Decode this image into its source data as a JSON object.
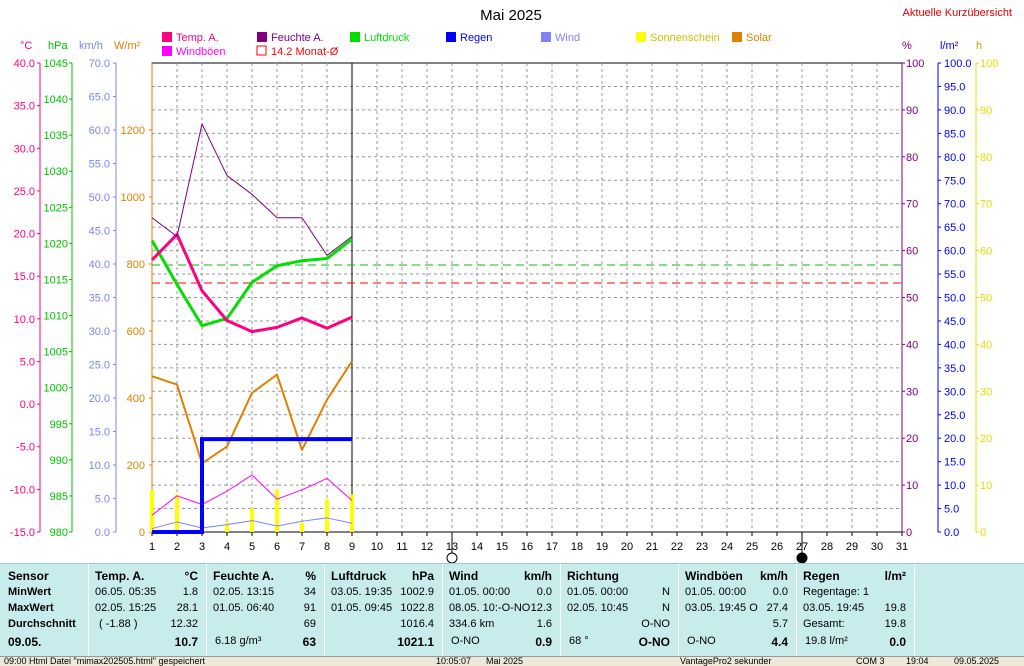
{
  "chart_data": {
    "type": "line",
    "title": "Mai 2025",
    "link": "Aktuelle Kurzübersicht",
    "x": [
      1,
      2,
      3,
      4,
      5,
      6,
      7,
      8,
      9
    ],
    "x_ticks": [
      "1",
      "2",
      "3",
      "4",
      "5",
      "6",
      "7",
      "8",
      "9",
      "10",
      "11",
      "12",
      "13",
      "14",
      "15",
      "16",
      "17",
      "18",
      "19",
      "20",
      "21",
      "22",
      "23",
      "24",
      "25",
      "26",
      "27",
      "28",
      "29",
      "30",
      "31"
    ],
    "xlim": [
      1,
      31
    ],
    "axes": {
      "temp": {
        "unit": "°C",
        "ylim": [
          -15,
          40
        ],
        "color": "#ff0080",
        "ticks": [
          "40.0",
          "35.0",
          "30.0",
          "25.0",
          "20.0",
          "15.0",
          "10.0",
          "5.0",
          "0.0",
          "-5.0",
          "-10.0",
          "-15.0"
        ]
      },
      "pressure": {
        "unit": "hPa",
        "ylim": [
          980,
          1045
        ],
        "color": "#00c000",
        "ticks": [
          "1045",
          "1040",
          "1035",
          "1030",
          "1025",
          "1020",
          "1015",
          "1010",
          "1005",
          "1000",
          "995",
          "990",
          "985",
          "980"
        ]
      },
      "wind": {
        "unit": "km/h",
        "ylim": [
          0,
          70
        ],
        "color": "#8080ff",
        "ticks": [
          "70.0",
          "65.0",
          "60.0",
          "55.0",
          "50.0",
          "45.0",
          "40.0",
          "35.0",
          "30.0",
          "25.0",
          "20.0",
          "15.0",
          "10.0",
          "5.0",
          "0.0"
        ]
      },
      "solar": {
        "unit": "W/m²",
        "ylim": [
          0,
          1400
        ],
        "color": "#e08000",
        "ticks": [
          "1200",
          "1000",
          "800",
          "600",
          "400",
          "200",
          "0"
        ]
      },
      "humidity": {
        "unit": "%",
        "ylim": [
          0,
          100
        ],
        "color": "#800080",
        "ticks": [
          "100",
          "90",
          "80",
          "70",
          "60",
          "50",
          "40",
          "30",
          "20",
          "10",
          "0"
        ]
      },
      "rain": {
        "unit": "l/m²",
        "ylim": [
          0,
          100
        ],
        "color": "#0000ff",
        "ticks": [
          "100.0",
          "95.0",
          "90.0",
          "85.0",
          "80.0",
          "75.0",
          "70.0",
          "65.0",
          "60.0",
          "55.0",
          "50.0",
          "45.0",
          "40.0",
          "35.0",
          "30.0",
          "25.0",
          "20.0",
          "15.0",
          "10.0",
          "5.0",
          "0.0"
        ]
      },
      "sun": {
        "unit": "h",
        "ylim": [
          0,
          100
        ],
        "color": "#e0e000",
        "ticks": [
          "100",
          "90",
          "80",
          "70",
          "60",
          "50",
          "40",
          "30",
          "20",
          "10",
          "0"
        ]
      }
    },
    "legend": [
      {
        "label": "Temp. A.",
        "color": "#ff0080",
        "type": "box"
      },
      {
        "label": "Feuchte A.",
        "color": "#800080",
        "type": "box"
      },
      {
        "label": "Luftdruck",
        "color": "#00e000",
        "type": "box"
      },
      {
        "label": "Regen",
        "color": "#0000ff",
        "type": "box"
      },
      {
        "label": "Wind",
        "color": "#8080ff",
        "type": "box"
      },
      {
        "label": "Sonnenschein",
        "color": "#ffff00",
        "type": "box"
      },
      {
        "label": "Solar",
        "color": "#e08000",
        "type": "box"
      },
      {
        "label": "Windböen",
        "color": "#ff00ff",
        "type": "box"
      },
      {
        "label": "14.2 Monat-Ø",
        "color": "#ff0000",
        "type": "outline"
      }
    ],
    "series": [
      {
        "name": "Luftdruck",
        "axis": "pressure",
        "color": "#00e000",
        "width": 3,
        "values": [
          1020.4,
          1014.3,
          1008.6,
          1009.6,
          1014.6,
          1016.9,
          1017.6,
          1017.9,
          1020.6
        ]
      },
      {
        "name": "Temp. A.",
        "axis": "temp",
        "color": "#ff0080",
        "width": 3,
        "values": [
          16.9,
          19.9,
          13.3,
          9.8,
          8.5,
          9.0,
          10.1,
          8.9,
          10.2
        ]
      },
      {
        "name": "Feuchte A.",
        "axis": "humidity",
        "color": "#800080",
        "width": 1,
        "values": [
          67,
          63,
          87,
          76,
          72,
          67,
          67,
          59,
          63
        ]
      },
      {
        "name": "Solar",
        "axis": "solar",
        "color": "#e08000",
        "width": 2,
        "values": [
          465,
          440,
          205,
          255,
          415,
          470,
          245,
          395,
          510
        ]
      },
      {
        "name": "Windböen",
        "axis": "wind",
        "color": "#ff00ff",
        "width": 1,
        "values": [
          2.5,
          5.4,
          4.1,
          6.1,
          8.5,
          4.9,
          6.3,
          8.0,
          4.7
        ]
      },
      {
        "name": "Wind",
        "axis": "wind",
        "color": "#8080ff",
        "width": 1,
        "values": [
          0.5,
          1.5,
          0.6,
          1.1,
          1.7,
          0.9,
          1.6,
          2.1,
          1.3
        ]
      }
    ],
    "rain_series": {
      "name": "Regen",
      "axis": "rain",
      "color": "#0000ff",
      "x": [
        1,
        2,
        3,
        3,
        9
      ],
      "values": [
        0,
        0,
        0,
        19.8,
        19.8
      ]
    },
    "sun_bars": {
      "name": "Sonnenschein",
      "axis": "sun",
      "color": "#ffff00",
      "values": [
        9,
        8,
        1,
        2,
        5,
        9,
        2,
        7,
        8
      ]
    },
    "reference_lines": [
      {
        "axis": "pressure",
        "value": 1017.0,
        "color": "#00c000"
      },
      {
        "axis": "temp",
        "value": 14.2,
        "color": "#ff0000"
      }
    ],
    "moon_phases": [
      {
        "day": 13,
        "phase": "full"
      },
      {
        "day": 27,
        "phase": "new"
      }
    ],
    "grid": true
  },
  "summary": {
    "sensor": {
      "header": "Sensor",
      "rows": [
        "MinWert",
        "MaxWert",
        "Durchschnitt"
      ],
      "date": "09.05."
    },
    "temp": {
      "header": "Temp. A.",
      "unit": "°C",
      "min_time": "06.05.  05:35",
      "min": "1.8",
      "max_time": "02.05.  15:25",
      "max": "28.1",
      "avg_note": "( -1.88 )",
      "avg": "12.32",
      "current": "10.7"
    },
    "humidity": {
      "header": "Feuchte A.",
      "unit": "%",
      "min_time": "02.05.  13:15",
      "min": "34",
      "max_time": "01.05.  06:40",
      "max": "91",
      "avg": "69",
      "abs": "6.18 g/m³",
      "current": "63"
    },
    "pressure": {
      "header": "Luftdruck",
      "unit": "hPa",
      "min_time": "03.05.  19:35",
      "min": "1002.9",
      "max_time": "01.05.  09:45",
      "max": "1022.8",
      "avg": "1016.4",
      "current": "1021.1"
    },
    "wind": {
      "header": "Wind",
      "unit": "km/h",
      "min_time": "01.05.  00:00",
      "min": "0.0",
      "max_time": "08.05.  10:-O-NO",
      "max": "12.3",
      "distance": "334.6 km",
      "avg": "1.6",
      "dir": "O-NO",
      "current": "0.9"
    },
    "direction": {
      "header": "Richtung",
      "min_time": "01.05.  00:00",
      "min": "N",
      "max_time": "02.05.  10:45",
      "max": "N",
      "avg": "O-NO",
      "deg": "68 °",
      "current": "O-NO"
    },
    "gusts": {
      "header": "Windböen",
      "unit": "km/h",
      "min_time": "01.05.  00:00",
      "min": "0.0",
      "max_time": "03.05.  19:45  O",
      "max": "27.4",
      "avg": "5.7",
      "dir": "O-NO",
      "current": "4.4"
    },
    "rain": {
      "header": "Regen",
      "unit": "l/m²",
      "days": "Regentage: 1",
      "max_time": "03.05.  19:45",
      "max": "19.8",
      "total_label": "Gesamt:",
      "total": "19.8",
      "today": "19.8 l/m²",
      "current": "0.0"
    }
  },
  "statusbar": {
    "left": "09:00  Html Datei \"mimax202505.html\" gespeichert",
    "time": "10:05:07",
    "month": "Mai 2025",
    "next": "VantagePro2 sekunder",
    "port": "COM 3",
    "clock": "19:04",
    "date": "09.05.2025"
  }
}
